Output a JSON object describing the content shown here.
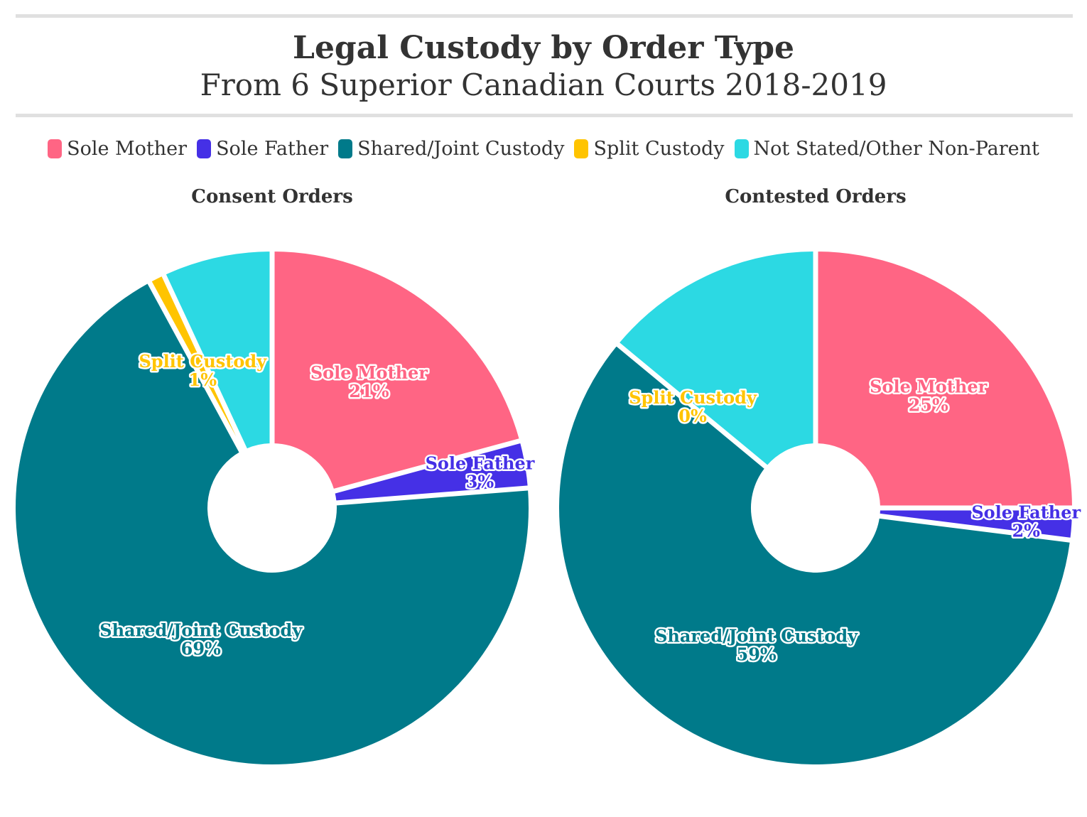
{
  "title": "Legal Custody by Order Type",
  "subtitle": "From 6 Superior Canadian Courts 2018-2019",
  "legend": [
    {
      "label": "Sole Mother",
      "color": "#ff6584"
    },
    {
      "label": "Sole Father",
      "color": "#4530e6"
    },
    {
      "label": "Shared/Joint Custody",
      "color": "#007a8a"
    },
    {
      "label": "Split Custody",
      "color": "#ffc400"
    },
    {
      "label": "Not Stated/Other Non-Parent",
      "color": "#2cd9e3"
    }
  ],
  "chart_data": [
    {
      "type": "pie",
      "title": "Consent Orders",
      "slices": [
        {
          "label": "Sole Mother",
          "value": 21,
          "display": "21%",
          "color": "#ff6584"
        },
        {
          "label": "Sole Father",
          "value": 3,
          "display": "3%",
          "color": "#4530e6"
        },
        {
          "label": "Shared/Joint Custody",
          "value": 69,
          "display": "69%",
          "color": "#007a8a"
        },
        {
          "label": "Split Custody",
          "value": 1,
          "display": "1%",
          "color": "#ffc400"
        },
        {
          "label": "Not Stated/Other Non-Parent",
          "value": 7,
          "color": "#2cd9e3"
        }
      ]
    },
    {
      "type": "pie",
      "title": "Contested Orders",
      "slices": [
        {
          "label": "Sole Mother",
          "value": 25,
          "display": "25%",
          "color": "#ff6584"
        },
        {
          "label": "Sole Father",
          "value": 2,
          "display": "2%",
          "color": "#4530e6"
        },
        {
          "label": "Shared/Joint Custody",
          "value": 59,
          "display": "59%",
          "color": "#007a8a"
        },
        {
          "label": "Split Custody",
          "value": 0,
          "display": "0%",
          "color": "#ffc400"
        },
        {
          "label": "Not Stated/Other Non-Parent",
          "value": 14,
          "color": "#2cd9e3"
        }
      ]
    }
  ]
}
